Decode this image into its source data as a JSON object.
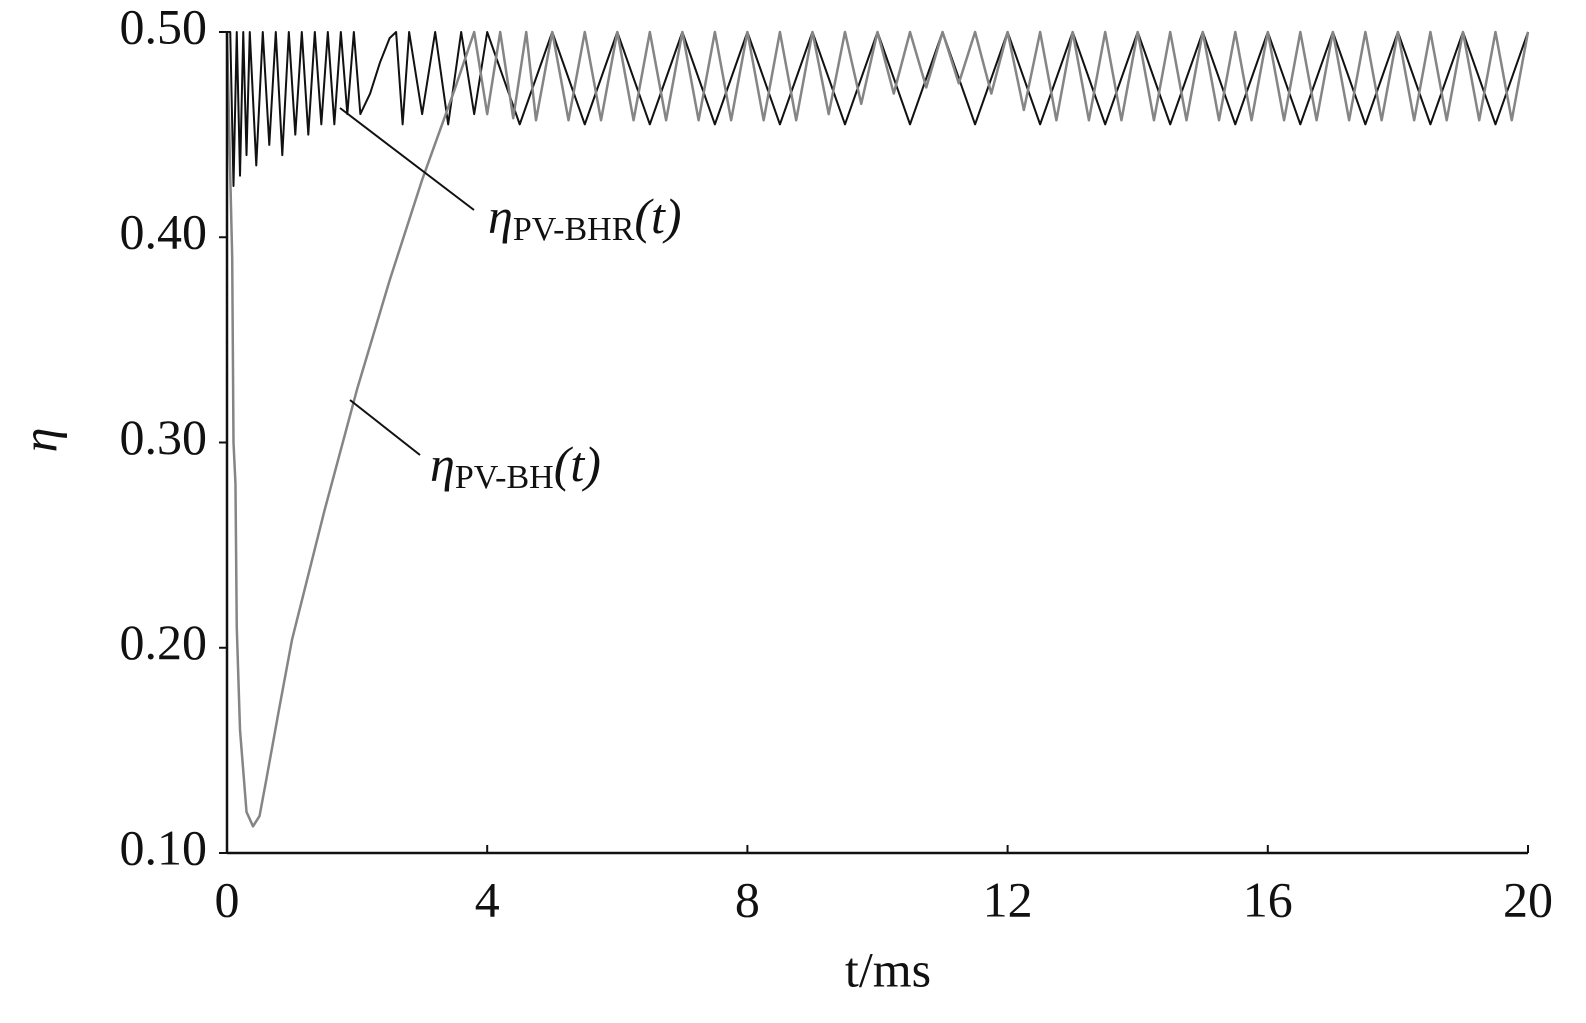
{
  "chart_data": {
    "type": "line",
    "x_label": "t/ms",
    "y_label": "η",
    "xlim": [
      0,
      20
    ],
    "xticks": [
      0,
      4,
      8,
      12,
      16,
      20
    ],
    "ylim": [
      0.1,
      0.5
    ],
    "yticks": [
      {
        "value": 0.1,
        "label": "0.10"
      },
      {
        "value": 0.2,
        "label": "0.20"
      },
      {
        "value": 0.3,
        "label": "0.30"
      },
      {
        "value": 0.4,
        "label": "0.40"
      },
      {
        "value": 0.5,
        "label": "0.50"
      }
    ],
    "series": [
      {
        "name": "PV-BHR",
        "color": "#111111",
        "x": [
          0,
          0.05,
          0.1,
          0.15,
          0.2,
          0.25,
          0.3,
          0.35,
          0.45,
          0.55,
          0.65,
          0.75,
          0.85,
          0.95,
          1.05,
          1.15,
          1.25,
          1.35,
          1.45,
          1.55,
          1.65,
          1.75,
          1.85,
          1.95,
          2.05,
          2.2,
          2.35,
          2.5,
          2.6,
          2.7,
          2.8,
          3.0,
          3.2,
          3.4,
          3.6,
          3.8,
          4.0,
          4.5,
          5,
          5.5,
          6,
          6.5,
          7,
          7.5,
          8,
          8.5,
          9,
          9.5,
          10,
          10.5,
          11,
          11.5,
          12,
          12.5,
          13,
          13.5,
          14,
          14.5,
          15,
          15.5,
          16,
          16.5,
          17,
          17.5,
          18,
          18.5,
          19,
          19.5,
          20
        ],
        "values": [
          0.5,
          0.5,
          0.425,
          0.5,
          0.43,
          0.5,
          0.44,
          0.5,
          0.435,
          0.5,
          0.445,
          0.5,
          0.44,
          0.5,
          0.45,
          0.5,
          0.45,
          0.5,
          0.455,
          0.5,
          0.455,
          0.5,
          0.46,
          0.5,
          0.46,
          0.47,
          0.485,
          0.497,
          0.5,
          0.455,
          0.5,
          0.46,
          0.5,
          0.455,
          0.5,
          0.46,
          0.5,
          0.455,
          0.5,
          0.455,
          0.5,
          0.455,
          0.5,
          0.455,
          0.5,
          0.455,
          0.5,
          0.455,
          0.5,
          0.455,
          0.5,
          0.455,
          0.5,
          0.455,
          0.5,
          0.455,
          0.5,
          0.455,
          0.5,
          0.455,
          0.5,
          0.455,
          0.5,
          0.455,
          0.5,
          0.455,
          0.5,
          0.455,
          0.5
        ]
      },
      {
        "name": "PV-BH",
        "color": "#858585",
        "x": [
          0,
          0.05,
          0.08,
          0.1,
          0.13,
          0.15,
          0.2,
          0.25,
          0.3,
          0.4,
          0.5,
          0.6,
          0.8,
          1.0,
          1.5,
          2.0,
          2.5,
          3.0,
          3.5,
          3.8,
          4.0,
          4.2,
          4.4,
          4.6,
          4.75,
          5,
          5.25,
          5.5,
          5.75,
          6,
          6.25,
          6.5,
          6.75,
          7,
          7.25,
          7.5,
          7.75,
          8,
          8.25,
          8.5,
          8.75,
          9,
          9.25,
          9.5,
          9.75,
          10,
          10.25,
          10.5,
          10.75,
          11,
          11.25,
          11.5,
          11.75,
          12,
          12.25,
          12.5,
          12.75,
          13,
          13.25,
          13.5,
          13.75,
          14,
          14.25,
          14.5,
          14.75,
          15,
          15.25,
          15.5,
          15.75,
          16,
          16.25,
          16.5,
          16.75,
          17,
          17.25,
          17.5,
          17.75,
          18,
          18.25,
          18.5,
          18.75,
          19,
          19.25,
          19.5,
          19.75,
          20
        ],
        "values": [
          0.5,
          0.43,
          0.39,
          0.3,
          0.28,
          0.21,
          0.16,
          0.14,
          0.12,
          0.113,
          0.118,
          0.135,
          0.17,
          0.204,
          0.267,
          0.326,
          0.379,
          0.428,
          0.472,
          0.5,
          0.46,
          0.5,
          0.458,
          0.5,
          0.457,
          0.5,
          0.457,
          0.5,
          0.457,
          0.5,
          0.457,
          0.5,
          0.457,
          0.5,
          0.457,
          0.5,
          0.457,
          0.5,
          0.457,
          0.5,
          0.457,
          0.5,
          0.46,
          0.5,
          0.465,
          0.5,
          0.47,
          0.5,
          0.473,
          0.5,
          0.475,
          0.5,
          0.47,
          0.5,
          0.462,
          0.5,
          0.457,
          0.5,
          0.457,
          0.5,
          0.457,
          0.5,
          0.457,
          0.5,
          0.457,
          0.5,
          0.457,
          0.5,
          0.457,
          0.5,
          0.457,
          0.5,
          0.457,
          0.5,
          0.457,
          0.5,
          0.457,
          0.5,
          0.457,
          0.5,
          0.457,
          0.5,
          0.457,
          0.5,
          0.457,
          0.5
        ]
      }
    ],
    "annotations": [
      {
        "prefix": "η",
        "suffix": "(t)"
      },
      {
        "prefix": "η",
        "suffix": "(t)"
      }
    ]
  }
}
